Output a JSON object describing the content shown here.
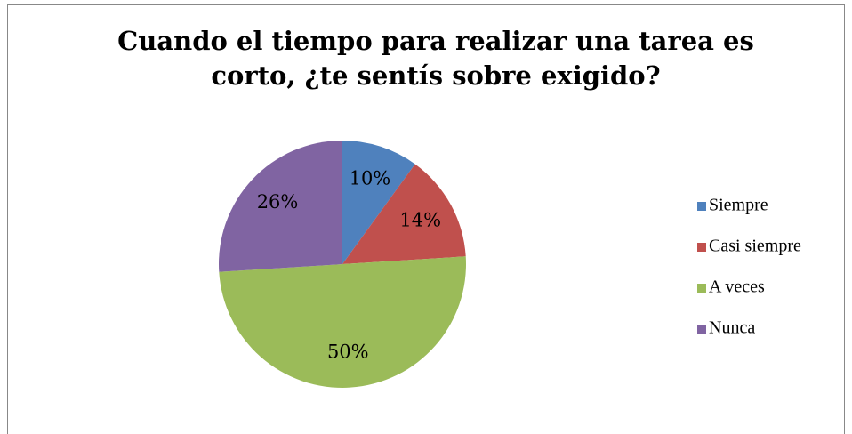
{
  "chart_data": {
    "type": "pie",
    "title": [
      "Cuando el tiempo para realizar una tarea es",
      "corto, ¿te sentís sobre exigido?"
    ],
    "categories": [
      "Siempre",
      "Casi siempre",
      "A veces",
      "Nunca"
    ],
    "values": [
      10,
      14,
      50,
      26
    ],
    "value_labels": [
      "10%",
      "14%",
      "50%",
      "26%"
    ],
    "colors": [
      "#4f81bd",
      "#c0504d",
      "#9bbb59",
      "#8064a2"
    ],
    "legend": "right"
  }
}
